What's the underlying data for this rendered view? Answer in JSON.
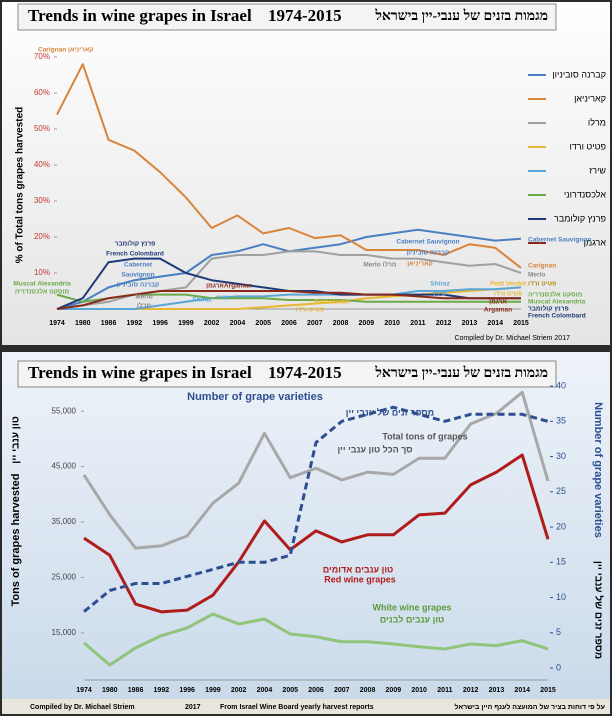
{
  "chart_data": [
    {
      "type": "line",
      "title": "Trends in wine grapes in Israel",
      "subtitle": "1974-2015",
      "title_he": "מגמות בזנים של ענבי-יין בישראל",
      "ylabel": "% of Total tons grapes harvested",
      "credit": "Compiled by Dr. Michael Striem 2017",
      "categories": [
        "1974",
        "1980",
        "1986",
        "1992",
        "1996",
        "1999",
        "2002",
        "2004",
        "2005",
        "2006",
        "2007",
        "2008",
        "2009",
        "2010",
        "2011",
        "2012",
        "2013",
        "2014",
        "2015"
      ],
      "ylim": [
        0,
        70
      ],
      "yticks": [
        {
          "value": 10,
          "label": "10%"
        },
        {
          "value": 20,
          "label": "20%"
        },
        {
          "value": 30,
          "label": "30%"
        },
        {
          "value": 40,
          "label": "40%"
        },
        {
          "value": 50,
          "label": "50%"
        },
        {
          "value": 60,
          "label": "60%"
        },
        {
          "value": 70,
          "label": "70%"
        }
      ],
      "legend": "right",
      "series": [
        {
          "name": "קברנה סוביניון",
          "color": "#4a7fc1",
          "values": [
            0,
            2,
            6,
            8,
            9,
            10,
            15,
            16,
            18,
            16,
            17,
            18,
            20,
            21,
            22,
            21,
            20,
            19,
            19.5
          ]
        },
        {
          "name": "קאריניאן",
          "color": "#d9843b",
          "values": [
            54,
            68,
            47,
            44,
            38,
            31,
            22.5,
            26,
            21,
            22.5,
            19.7,
            20.5,
            16.4,
            16.4,
            16.4,
            15,
            18,
            17,
            11.4
          ]
        },
        {
          "name": "מרלו",
          "color": "#a0a0a0",
          "values": [
            0,
            1,
            2,
            4,
            5,
            6,
            14,
            15,
            15,
            16,
            16,
            15,
            15,
            14,
            14,
            13,
            12,
            12.5,
            10
          ]
        },
        {
          "name": "פטיט ורדו",
          "color": "#e8b830",
          "values": [
            0,
            0,
            0,
            0,
            0,
            0,
            0,
            0,
            0.5,
            1,
            1.5,
            2,
            3,
            3.5,
            4,
            4.5,
            5,
            5.5,
            6
          ]
        },
        {
          "name": "שירז",
          "color": "#5aa6d8",
          "values": [
            0,
            0,
            0,
            0,
            1,
            2,
            3,
            3.5,
            3.5,
            4,
            4,
            4,
            4,
            4,
            5,
            5,
            5.5,
            5.5,
            6
          ]
        },
        {
          "name": "אלכסנדרוני",
          "color": "#6aaa48",
          "values": [
            4,
            2,
            3,
            4,
            4,
            4,
            3,
            3,
            3,
            2.5,
            2.5,
            2.5,
            2,
            2,
            2,
            2,
            2,
            2,
            2
          ]
        },
        {
          "name": "פרנץ קולומבר",
          "color": "#1f3a78",
          "values": [
            0,
            3,
            13,
            14,
            14,
            10,
            8,
            7,
            6,
            5,
            5,
            4,
            4,
            4,
            4,
            4,
            3,
            3,
            3
          ]
        },
        {
          "name": "ארגמן",
          "color": "#8b2a1a",
          "values": [
            0,
            1,
            3,
            4,
            5,
            5,
            5,
            5,
            5,
            5,
            4.5,
            4.5,
            4,
            4,
            3.5,
            3,
            3,
            3,
            3
          ]
        }
      ],
      "annotations": [
        "Carignan קאריניאן",
        "Cabernet Sauvignon",
        "קברנה סוביניון",
        "קאריניאן",
        "Cabernet Sauvignon",
        "Carignan",
        "Merlo",
        "Merlo מרלו",
        "פרנץ קולומבר",
        "French Colombard",
        "Cabernet",
        "Sauvignon",
        "קברנה סוביניון",
        "Merlo",
        "מרלו",
        "Shiraz",
        "שירז",
        "Petit Verdot",
        "פטיט ורדו",
        "Argaman",
        "ארגמן",
        "Muscat Alexandria",
        "מוסקט אלכסנדריה",
        "Shiraz",
        "שירז",
        "Petit Verdot",
        "פטיט ורדו",
        "ארגמן",
        "Argaman",
        "פטיט ורדו",
        "מוסקט אלכסנדריה",
        "Muscat Alexandria",
        "פרנץ קולומבר",
        "French Colombard"
      ]
    },
    {
      "type": "line",
      "title": "Trends in wine grapes in Israel",
      "subtitle": "1974-2015",
      "title_he": "מגמות בזנים של ענבי-יין בישראל",
      "ylabel": "Tons of grapes harvested",
      "ylabel_he": "טון ענבי יין",
      "y2label": "Number of grape varieties",
      "y2label_he": "מספר זנים של ענבי יין",
      "credit": [
        "Compiled by Dr. Michael Striem",
        "2017",
        "From Israel Wine Board yearly harvest reports",
        "על פי דוחות בציר של המועצה לענף היין בישראל"
      ],
      "categories": [
        "1974",
        "1980",
        "1986",
        "1992",
        "1996",
        "1999",
        "2002",
        "2004",
        "2005",
        "2006",
        "2007",
        "2008",
        "2009",
        "2010",
        "2011",
        "2012",
        "2013",
        "2014",
        "2015"
      ],
      "ylim": [
        6500,
        59900
      ],
      "yticks": [
        {
          "value": 15000,
          "label": "15,000"
        },
        {
          "value": 25000,
          "label": "25,000"
        },
        {
          "value": 35000,
          "label": "35,000"
        },
        {
          "value": 45000,
          "label": "45,000"
        },
        {
          "value": 55000,
          "label": "55,000"
        }
      ],
      "y2lim": [
        -1.7,
        40.3
      ],
      "y2ticks": [
        0,
        5,
        10,
        15,
        20,
        25,
        30,
        35,
        40
      ],
      "series": [
        {
          "name": "Total tons of grapes",
          "color": "#a8a8a8",
          "values": [
            43500,
            36300,
            30300,
            30700,
            32500,
            38400,
            42000,
            51000,
            43000,
            44700,
            42600,
            44000,
            43600,
            46500,
            46500,
            52700,
            54600,
            58400,
            42400
          ]
        },
        {
          "name": "Red wine grapes",
          "color": "#b01c1c",
          "values": [
            32100,
            29000,
            20200,
            18800,
            19100,
            21800,
            27800,
            35200,
            30000,
            33400,
            31400,
            32700,
            32700,
            36300,
            36600,
            41700,
            44000,
            47100,
            31900
          ]
        },
        {
          "name": "White wine grapes",
          "color": "#8fc47a",
          "values": [
            13200,
            9200,
            12300,
            14500,
            15900,
            18400,
            16600,
            17500,
            14800,
            14300,
            13400,
            13400,
            13000,
            12500,
            12100,
            13000,
            12700,
            13600,
            12100
          ]
        },
        {
          "name": "Number of grape varieties",
          "color": "#2e4f8f",
          "axis": "y2",
          "style": "dashed",
          "values": [
            8,
            11,
            12,
            12,
            13,
            14,
            15,
            15,
            16,
            32,
            35,
            36,
            37,
            36,
            35,
            36,
            36,
            36,
            35
          ]
        }
      ],
      "annotations": [
        "מספר זנים של ענבי יין",
        "סך הכל טון ענבי יין",
        "טון ענבים אדומים",
        "טון ענבים לבנים"
      ]
    }
  ]
}
